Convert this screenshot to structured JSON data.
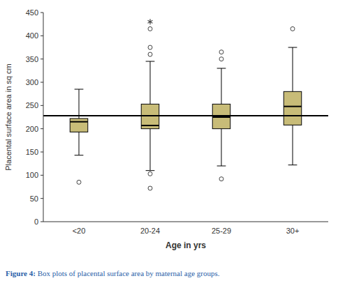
{
  "chart_data": {
    "type": "box",
    "categories": [
      "<20",
      "20-24",
      "25-29",
      "30+"
    ],
    "boxes": [
      {
        "q1": 193,
        "median": 215,
        "q3": 222,
        "whisker_low": 143,
        "whisker_high": 285,
        "outliers_circle": [
          85
        ],
        "outliers_star": []
      },
      {
        "q1": 200,
        "median": 207,
        "q3": 253,
        "whisker_low": 110,
        "whisker_high": 345,
        "outliers_circle": [
          72,
          103,
          360,
          375,
          415
        ],
        "outliers_star": [
          430
        ]
      },
      {
        "q1": 200,
        "median": 225,
        "q3": 253,
        "whisker_low": 120,
        "whisker_high": 330,
        "outliers_circle": [
          92,
          350,
          365
        ],
        "outliers_star": []
      },
      {
        "q1": 208,
        "median": 248,
        "q3": 280,
        "whisker_low": 122,
        "whisker_high": 375,
        "outliers_circle": [
          415
        ],
        "outliers_star": []
      }
    ],
    "hline": 228,
    "ylim": [
      0,
      450
    ],
    "yticks": [
      0,
      50,
      100,
      150,
      200,
      250,
      300,
      350,
      400,
      450
    ],
    "ylabel": "Placental surface area in sq cm",
    "xlabel": "Age in yrs",
    "caption_bold": "Figure 4:",
    "caption_normal": " Box plots of placental surface area by maternal age groups.",
    "color": "#c8bc78",
    "grid": false
  }
}
